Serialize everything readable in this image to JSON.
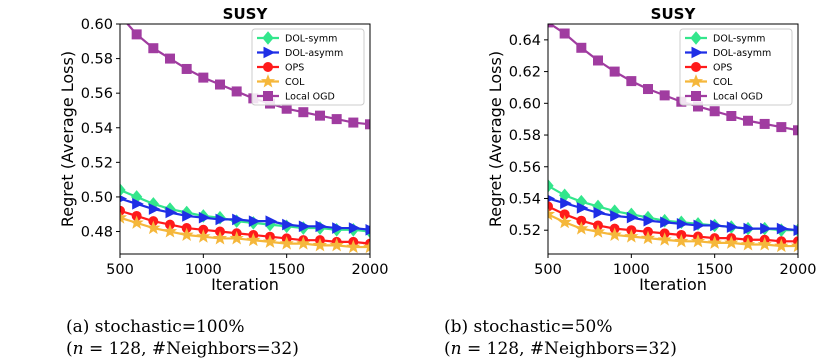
{
  "chart_data": [
    {
      "type": "line",
      "title": "SUSY",
      "xlabel": "Iteration",
      "ylabel": "Regret (Average Loss)",
      "xlim": [
        500,
        2000
      ],
      "ylim": [
        0.467,
        0.6
      ],
      "xticks": [
        500,
        1000,
        1500,
        2000
      ],
      "yticks": [
        0.48,
        0.5,
        0.52,
        0.54,
        0.56,
        0.58,
        0.6
      ],
      "ytick_labels": [
        "0.48",
        "0.50",
        "0.52",
        "0.54",
        "0.56",
        "0.58",
        "0.60"
      ],
      "legend": "top-right",
      "x": [
        500,
        600,
        700,
        800,
        900,
        1000,
        1100,
        1200,
        1300,
        1400,
        1500,
        1600,
        1700,
        1800,
        1900,
        2000
      ],
      "series": [
        {
          "name": "DOL-symm",
          "color": "#33e68c",
          "marker": "diamond",
          "values": [
            0.504,
            0.5,
            0.496,
            0.493,
            0.491,
            0.489,
            0.488,
            0.486,
            0.485,
            0.484,
            0.483,
            0.482,
            0.482,
            0.481,
            0.481,
            0.48
          ]
        },
        {
          "name": "DOL-asymm",
          "color": "#1f2fe6",
          "marker": "triangle-right",
          "values": [
            0.499,
            0.496,
            0.493,
            0.491,
            0.489,
            0.488,
            0.487,
            0.487,
            0.486,
            0.486,
            0.484,
            0.483,
            0.483,
            0.482,
            0.482,
            0.481
          ]
        },
        {
          "name": "OPS",
          "color": "#ff1a1a",
          "marker": "circle",
          "values": [
            0.492,
            0.489,
            0.486,
            0.484,
            0.482,
            0.481,
            0.48,
            0.479,
            0.478,
            0.477,
            0.476,
            0.475,
            0.475,
            0.474,
            0.474,
            0.473
          ]
        },
        {
          "name": "COL",
          "color": "#f5b73b",
          "marker": "star",
          "values": [
            0.488,
            0.485,
            0.482,
            0.48,
            0.478,
            0.477,
            0.476,
            0.476,
            0.475,
            0.474,
            0.473,
            0.473,
            0.472,
            0.472,
            0.471,
            0.471
          ]
        },
        {
          "name": "Local OGD",
          "color": "#a03ca0",
          "marker": "square",
          "values": [
            0.605,
            0.594,
            0.586,
            0.58,
            0.574,
            0.569,
            0.565,
            0.561,
            0.557,
            0.554,
            0.551,
            0.549,
            0.547,
            0.545,
            0.543,
            0.542
          ]
        }
      ]
    },
    {
      "type": "line",
      "title": "SUSY",
      "xlabel": "Iteration",
      "ylabel": "Regret (Average Loss)",
      "xlim": [
        500,
        2000
      ],
      "ylim": [
        0.505,
        0.65
      ],
      "xticks": [
        500,
        1000,
        1500,
        2000
      ],
      "yticks": [
        0.52,
        0.54,
        0.56,
        0.58,
        0.6,
        0.62,
        0.64
      ],
      "ytick_labels": [
        "0.52",
        "0.54",
        "0.56",
        "0.58",
        "0.60",
        "0.62",
        "0.64"
      ],
      "legend": "top-right",
      "x": [
        500,
        600,
        700,
        800,
        900,
        1000,
        1100,
        1200,
        1300,
        1400,
        1500,
        1600,
        1700,
        1800,
        1900,
        2000
      ],
      "series": [
        {
          "name": "DOL-symm",
          "color": "#33e68c",
          "marker": "diamond",
          "values": [
            0.548,
            0.542,
            0.538,
            0.535,
            0.532,
            0.53,
            0.528,
            0.526,
            0.525,
            0.524,
            0.523,
            0.522,
            0.521,
            0.521,
            0.52,
            0.52
          ]
        },
        {
          "name": "DOL-asymm",
          "color": "#1f2fe6",
          "marker": "triangle-right",
          "values": [
            0.54,
            0.537,
            0.534,
            0.531,
            0.529,
            0.528,
            0.526,
            0.525,
            0.524,
            0.523,
            0.523,
            0.522,
            0.521,
            0.521,
            0.521,
            0.52
          ]
        },
        {
          "name": "OPS",
          "color": "#ff1a1a",
          "marker": "circle",
          "values": [
            0.535,
            0.53,
            0.526,
            0.523,
            0.521,
            0.52,
            0.519,
            0.518,
            0.517,
            0.516,
            0.515,
            0.515,
            0.514,
            0.514,
            0.513,
            0.513
          ]
        },
        {
          "name": "COL",
          "color": "#f5b73b",
          "marker": "star",
          "values": [
            0.53,
            0.525,
            0.521,
            0.519,
            0.517,
            0.516,
            0.515,
            0.514,
            0.513,
            0.513,
            0.512,
            0.512,
            0.511,
            0.511,
            0.51,
            0.51
          ]
        },
        {
          "name": "Local OGD",
          "color": "#a03ca0",
          "marker": "square",
          "values": [
            0.651,
            0.644,
            0.635,
            0.627,
            0.62,
            0.614,
            0.609,
            0.605,
            0.601,
            0.598,
            0.595,
            0.592,
            0.589,
            0.587,
            0.585,
            0.583
          ]
        }
      ]
    }
  ],
  "captions": [
    {
      "line1": "(a) stochastic=100%",
      "line2_pre": "(",
      "line2_n": "n",
      "line2_post": " = 128, #Neighbors=32)"
    },
    {
      "line1": "(b) stochastic=50%",
      "line2_pre": "(",
      "line2_n": "n",
      "line2_post": " = 128, #Neighbors=32)"
    }
  ]
}
